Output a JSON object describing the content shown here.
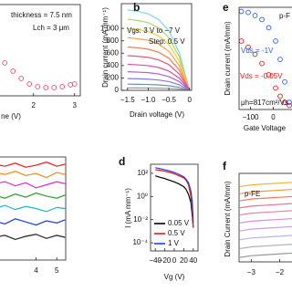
{
  "chart_data": [
    {
      "type": "line",
      "marker": "circle",
      "annotations": [
        "thickness = 7.5 nm",
        "Lch = 3 μm"
      ],
      "x_label": "ne (V)",
      "x": [
        1.1,
        1.3,
        1.5,
        1.7,
        1.9,
        2.1,
        2.3,
        2.5,
        2.7,
        2.9,
        3.0
      ],
      "series": [
        {
          "color": "#e8506a",
          "values": [
            0.44,
            0.36,
            0.27,
            0.19,
            0.13,
            0.1,
            0.09,
            0.09,
            0.1,
            0.12,
            0.13
          ]
        }
      ],
      "xlim": [
        1.05,
        3.14
      ],
      "xticks": [
        2,
        3
      ],
      "ylim": [
        0,
        1
      ]
    },
    {
      "type": "line",
      "panel_label": "b",
      "annotations": [
        "Vgs:  3 V to −7 V",
        "Step: 0.5 V"
      ],
      "x_label": "Drain voltage (V)",
      "y_label": "Drain current (mA mm⁻¹)",
      "x": [
        -1.5,
        -1.25,
        -1.0,
        -0.75,
        -0.5,
        -0.25,
        0
      ],
      "series": [
        {
          "color": "#7fd3f0",
          "values": [
            1300,
            1274,
            1235,
            1144,
            962,
            611,
            0
          ]
        },
        {
          "color": "#a6d96a",
          "values": [
            1150,
            1127,
            1093,
            1012,
            851,
            541,
            0
          ]
        },
        {
          "color": "#f0d040",
          "values": [
            1000,
            980,
            950,
            880,
            740,
            470,
            0
          ]
        },
        {
          "color": "#f5a742",
          "values": [
            850,
            833,
            808,
            748,
            629,
            400,
            0
          ]
        },
        {
          "color": "#f07c4a",
          "values": [
            700,
            686,
            665,
            616,
            518,
            329,
            0
          ]
        },
        {
          "color": "#e85a7a",
          "values": [
            560,
            549,
            532,
            493,
            414,
            263,
            0
          ]
        },
        {
          "color": "#d94fb0",
          "values": [
            420,
            412,
            399,
            370,
            311,
            197,
            0
          ]
        },
        {
          "color": "#b25fd0",
          "values": [
            300,
            294,
            285,
            264,
            222,
            141,
            0
          ]
        },
        {
          "color": "#8a7ad8",
          "values": [
            190,
            186,
            181,
            167,
            141,
            89,
            0
          ]
        },
        {
          "color": "#6f8fb0",
          "values": [
            100,
            98,
            95,
            88,
            74,
            47,
            0
          ]
        },
        {
          "color": "#999999",
          "values": [
            40,
            39,
            38,
            35,
            30,
            19,
            0
          ]
        }
      ],
      "xlim": [
        -1.65,
        0.05
      ],
      "xticks": [
        {
          "value": -1.5,
          "label": "−1.5"
        },
        {
          "value": -1.0,
          "label": "−1.0"
        },
        {
          "value": -0.5,
          "label": "−0.5"
        },
        0
      ],
      "ylim": [
        0,
        1400
      ],
      "yticks": [
        0,
        200,
        400,
        600,
        800,
        {
          "value": 1000,
          "label": "1,000"
        }
      ]
    },
    {
      "type": "scatter",
      "marker": "circle",
      "panel_label": "e",
      "annotations": [
        "μh=817cm²/Vs",
        "p-F"
      ],
      "x_label": "Gate Voltage",
      "y_label": "Drain current (mA/mm)",
      "x": [
        -140,
        -110,
        -80,
        -50,
        -20,
        10,
        30,
        50,
        70
      ],
      "series": [
        {
          "name": "Vds = -1V",
          "color": "#2f5fe0",
          "values": [
            0.96,
            0.95,
            0.92,
            0.88,
            0.8,
            0.67,
            0.49,
            0.27,
            0.07
          ]
        },
        {
          "name": "Vds = -0.05V",
          "color": "#e8191c",
          "values": [
            0.67,
            0.61,
            0.54,
            0.45,
            0.34,
            0.21,
            0.13,
            0.07,
            0.04
          ]
        }
      ],
      "xlim": [
        -150,
        90
      ],
      "xticks": [
        {
          "value": -100,
          "label": "−100"
        },
        0
      ],
      "ylim": [
        0,
        1
      ]
    },
    {
      "type": "line",
      "x": [
        2.0,
        2.5,
        3.0,
        3.5,
        4.0,
        4.5,
        5.0,
        5.4
      ],
      "series": [
        {
          "color": "#e8191c",
          "values": [
            0.93,
            0.91,
            0.94,
            0.9,
            0.92,
            0.95,
            0.91,
            0.93
          ]
        },
        {
          "color": "#f28a1a",
          "values": [
            0.85,
            0.83,
            0.86,
            0.82,
            0.84,
            0.8,
            0.85,
            0.83
          ]
        },
        {
          "color": "#d42fd0",
          "values": [
            0.74,
            0.76,
            0.72,
            0.75,
            0.7,
            0.73,
            0.76,
            0.74
          ]
        },
        {
          "color": "#2ca02c",
          "values": [
            0.63,
            0.6,
            0.64,
            0.61,
            0.65,
            0.62,
            0.6,
            0.63
          ]
        },
        {
          "color": "#1fb5c9",
          "values": [
            0.5,
            0.53,
            0.49,
            0.52,
            0.5,
            0.47,
            0.51,
            0.5
          ]
        },
        {
          "color": "#1f3fd6",
          "values": [
            0.38,
            0.35,
            0.4,
            0.37,
            0.34,
            0.38,
            0.36,
            0.39
          ]
        },
        {
          "color": "#222222",
          "values": [
            0.22,
            0.24,
            0.2,
            0.23,
            0.25,
            0.21,
            0.24,
            0.22
          ]
        }
      ],
      "xlim": [
        2.0,
        5.43
      ],
      "xticks": [
        4,
        5
      ],
      "ylim": [
        0,
        1
      ]
    },
    {
      "type": "line",
      "panel_label": "d",
      "yscale": "log",
      "legend": "lower left",
      "x_label": "Vg (V)",
      "y_label": "I (mA mm⁻¹)",
      "x": [
        -40,
        -30,
        -20,
        -10,
        0,
        10,
        20,
        25,
        30,
        35,
        38,
        40
      ],
      "series": [
        {
          "name": "0.05 V",
          "color": "#000000",
          "values": [
            60,
            45,
            35,
            25,
            18,
            12,
            7,
            4,
            1.5,
            0.3,
            0.02,
            0.002
          ]
        },
        {
          "name": "0.5 V",
          "color": "#e8191c",
          "values": [
            200,
            180,
            150,
            120,
            90,
            60,
            40,
            25,
            10,
            1,
            0.05,
            0.002
          ]
        },
        {
          "name": "1 V",
          "color": "#1f3fd6",
          "values": [
            300,
            250,
            200,
            160,
            120,
            80,
            50,
            30,
            15,
            3,
            0.3,
            0.005
          ]
        }
      ],
      "xlim": [
        -50,
        50
      ],
      "xticks": [
        {
          "value": -40,
          "label": "−40"
        },
        {
          "value": -20,
          "label": "−20"
        },
        0,
        20,
        40
      ],
      "ylim": [
        2e-05,
        600
      ],
      "yticks": [
        {
          "value": 0.0001,
          "label": "10⁻⁴"
        },
        {
          "value": 0.01,
          "label": "10⁻²"
        },
        {
          "value": 1,
          "label": "10⁰"
        },
        {
          "value": 100,
          "label": "10²"
        }
      ]
    },
    {
      "type": "line",
      "panel_label": "f",
      "annotations": [
        "p-FE"
      ],
      "y_label": "Drain Current (mA/mm)",
      "x": [
        -3.4,
        -3,
        -2.5,
        -2,
        -1.5
      ],
      "series": [
        {
          "color": "#f5b335",
          "values": [
            0.85,
            0.87,
            0.88,
            0.89,
            0.9
          ]
        },
        {
          "color": "#f59a3a",
          "values": [
            0.77,
            0.79,
            0.8,
            0.81,
            0.82
          ]
        },
        {
          "color": "#f07b5a",
          "values": [
            0.69,
            0.71,
            0.72,
            0.73,
            0.74
          ]
        },
        {
          "color": "#ec6f8e",
          "values": [
            0.61,
            0.63,
            0.64,
            0.65,
            0.66
          ]
        },
        {
          "color": "#e57fb8",
          "values": [
            0.53,
            0.55,
            0.56,
            0.57,
            0.58
          ]
        },
        {
          "color": "#d98fd6",
          "values": [
            0.44,
            0.46,
            0.47,
            0.48,
            0.49
          ]
        },
        {
          "color": "#c9a0e0",
          "values": [
            0.35,
            0.37,
            0.38,
            0.39,
            0.4
          ]
        },
        {
          "color": "#b7b7e6",
          "values": [
            0.25,
            0.27,
            0.28,
            0.29,
            0.3
          ]
        },
        {
          "color": "#aab0bd",
          "values": [
            0.15,
            0.17,
            0.18,
            0.19,
            0.2
          ]
        },
        {
          "color": "#999999",
          "values": [
            0.05,
            0.07,
            0.08,
            0.09,
            0.1
          ]
        }
      ],
      "xlim": [
        -3.43,
        -1.5
      ],
      "xticks": [
        {
          "value": -3,
          "label": "−3"
        },
        {
          "value": -2,
          "label": "−2"
        }
      ],
      "ylim": [
        0,
        1
      ]
    }
  ]
}
